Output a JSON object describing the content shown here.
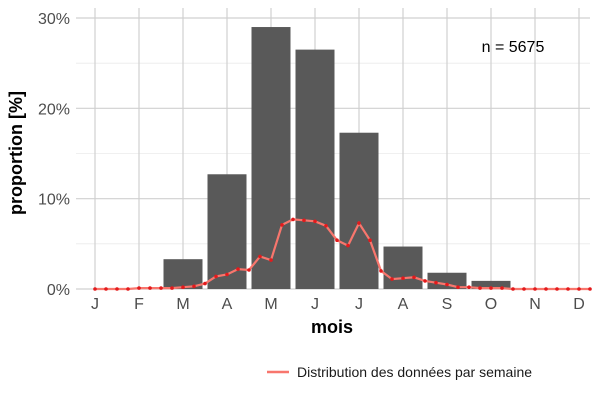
{
  "chart_data": {
    "type": "bar",
    "xlabel": "mois",
    "ylabel": "proportion [%]",
    "categories": [
      "J",
      "F",
      "M",
      "A",
      "M",
      "J",
      "J",
      "A",
      "S",
      "O",
      "N",
      "D"
    ],
    "ylim": [
      0,
      30
    ],
    "yticks": [
      0,
      10,
      20,
      30
    ],
    "ytick_labels": [
      "0%",
      "10%",
      "20%",
      "30%"
    ],
    "grid": true,
    "annotation": "n = 5675",
    "series": [
      {
        "type": "bar",
        "values": [
          0,
          0,
          3.3,
          12.7,
          29.0,
          26.5,
          17.3,
          4.7,
          1.8,
          0.9,
          0,
          0
        ],
        "color": "#595959"
      },
      {
        "name": "Distribution des données par semaine",
        "type": "line",
        "color": "#f8766d",
        "point_color": "#e31a1c",
        "x": [
          0.0,
          0.25,
          0.5,
          0.75,
          1.0,
          1.25,
          1.5,
          1.75,
          2.0,
          2.25,
          2.5,
          2.75,
          3.0,
          3.25,
          3.5,
          3.75,
          4.0,
          4.25,
          4.5,
          4.75,
          5.0,
          5.25,
          5.5,
          5.75,
          6.0,
          6.25,
          6.5,
          6.75,
          7.0,
          7.25,
          7.5,
          7.75,
          8.0,
          8.25,
          8.5,
          8.75,
          9.0,
          9.25,
          9.5,
          9.75,
          10.0,
          10.25,
          10.5,
          10.75,
          11.0,
          11.25
        ],
        "y": [
          0.0,
          0.0,
          0.0,
          0.0,
          0.1,
          0.1,
          0.1,
          0.1,
          0.2,
          0.3,
          0.6,
          1.4,
          1.6,
          2.2,
          2.1,
          3.6,
          3.2,
          7.1,
          7.7,
          7.6,
          7.5,
          7.0,
          5.4,
          4.8,
          7.3,
          5.4,
          2.0,
          1.1,
          1.2,
          1.3,
          0.9,
          0.7,
          0.5,
          0.2,
          0.2,
          0.1,
          0.1,
          0.1,
          0.0,
          0.0,
          0.0,
          0.0,
          0.0,
          0.0,
          0.0,
          0.0
        ]
      }
    ],
    "legend": {
      "position": "bottom-right",
      "entries": [
        "Distribution des données par semaine"
      ]
    }
  }
}
